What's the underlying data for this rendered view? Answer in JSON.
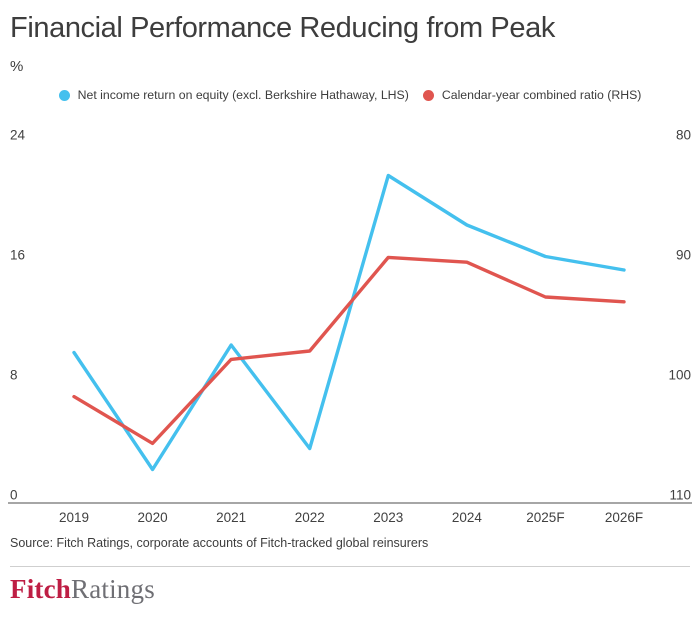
{
  "chart": {
    "title": "Financial Performance Reducing from Peak",
    "unit_label": "%",
    "source": "Source: Fitch Ratings, corporate accounts of Fitch-tracked global reinsurers"
  },
  "chart_data": {
    "type": "line",
    "categories": [
      "2019",
      "2020",
      "2021",
      "2022",
      "2023",
      "2024",
      "2025F",
      "2026F"
    ],
    "series": [
      {
        "name": "Net income return on equity (excl. Berkshire Hathaway, LHS)",
        "axis": "left",
        "color": "#44C0EE",
        "values": [
          9.5,
          1.7,
          10.0,
          3.1,
          21.3,
          18.0,
          15.9,
          15.0
        ]
      },
      {
        "name": "Calendar-year combined ratio (RHS)",
        "axis": "right",
        "color": "#E0554F",
        "values": [
          101.8,
          105.7,
          98.7,
          98.0,
          90.2,
          90.6,
          93.5,
          93.9
        ]
      }
    ],
    "left_axis": {
      "label": "%",
      "ticks": [
        0,
        8,
        16,
        24
      ],
      "range": [
        0,
        24
      ]
    },
    "right_axis": {
      "ticks": [
        110,
        100,
        90,
        80
      ],
      "range": [
        80,
        110
      ],
      "inverted": true
    },
    "grid": false,
    "legend_position": "top-center",
    "baseline_color": "#4d4d4d"
  },
  "footer": {
    "logo_fitch": "Fitch",
    "logo_ratings": "Ratings",
    "logo_fitch_color": "#BE1E44",
    "logo_ratings_color": "#6F6F74"
  }
}
